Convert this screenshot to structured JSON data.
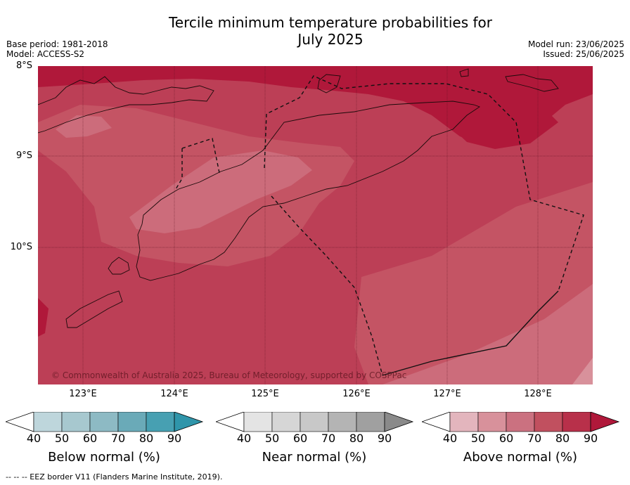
{
  "title_line1": "Tercile minimum temperature probabilities for",
  "title_line2": "July 2025",
  "base_period": "Base period: 1981-2018",
  "model": "Model: ACCESS-S2",
  "model_run": "Model run: 23/06/2025",
  "issued": "Issued: 25/06/2025",
  "lat_labels": [
    "8°S",
    "9°S",
    "10°S"
  ],
  "lon_labels": [
    "123°E",
    "124°E",
    "125°E",
    "126°E",
    "127°E",
    "128°E"
  ],
  "copyright": "© Commonwealth of Australia 2025, Bureau of Meteorology, supported by COSPPac",
  "colorbars": [
    {
      "title": "Below normal (%)",
      "ticks": [
        "40",
        "50",
        "60",
        "70",
        "80",
        "90"
      ],
      "colors": [
        "#ffffff",
        "#bed6dc",
        "#a7c8cf",
        "#8dbac4",
        "#6aaab8",
        "#47a0b2",
        "#2f95aa"
      ]
    },
    {
      "title": "Near normal (%)",
      "ticks": [
        "40",
        "50",
        "60",
        "70",
        "80",
        "90"
      ],
      "colors": [
        "#ffffff",
        "#e4e4e4",
        "#d6d6d6",
        "#c8c8c8",
        "#b4b4b4",
        "#a0a0a0",
        "#8a8a8a"
      ]
    },
    {
      "title": "Above normal (%)",
      "ticks": [
        "40",
        "50",
        "60",
        "70",
        "80",
        "90"
      ],
      "colors": [
        "#ffffff",
        "#e3b5bd",
        "#d8919b",
        "#cb7180",
        "#c1505f",
        "#b8304a",
        "#b0183a"
      ]
    }
  ],
  "footer": "--  --  -- EEZ border V11 (Flanders Marine Institute, 2019).",
  "map_colors": {
    "p90": "#b0183a",
    "p80": "#b8304a",
    "p70": "#c1505f",
    "p60": "#cb7180"
  }
}
